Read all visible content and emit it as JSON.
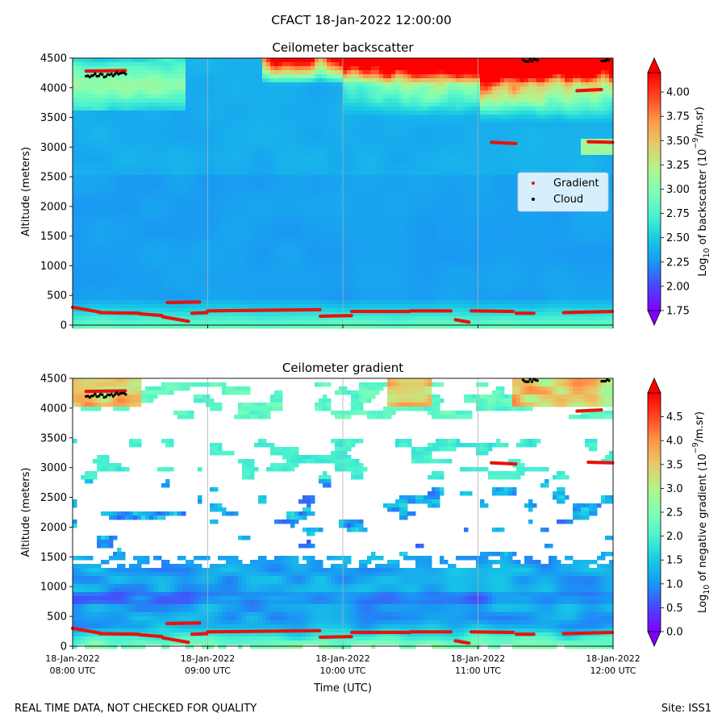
{
  "figure": {
    "title": "CFACT 18-Jan-2022 12:00:00",
    "footer_left": "REAL TIME DATA, NOT CHECKED FOR QUALITY",
    "footer_right": "Site: ISS1"
  },
  "colors": {
    "gradient_marker": "#e8120c",
    "cloud_marker": "#000000",
    "gridline": "#b0b0b0",
    "colormap": [
      "#8000ff",
      "#4a45fb",
      "#1996f3",
      "#17cae5",
      "#4cf2ce",
      "#80ffb4",
      "#b4f28c",
      "#e6ca6a",
      "#ff9646",
      "#ff4522",
      "#ff0000"
    ]
  },
  "chart_data": [
    {
      "type": "heatmap",
      "name": "backscatter",
      "title": "Ceilometer backscatter",
      "xlabel": "",
      "ylabel": "Altitude (meters)",
      "xlim": [
        0,
        240
      ],
      "ylim": [
        0,
        4500
      ],
      "yticks": [
        0,
        500,
        1000,
        1500,
        2000,
        2500,
        3000,
        3500,
        4000,
        4500
      ],
      "xticks": [
        {
          "t": 0,
          "line1": "18-Jan-2022",
          "line2": "08:00 UTC"
        },
        {
          "t": 60,
          "line1": "18-Jan-2022",
          "line2": "09:00 UTC"
        },
        {
          "t": 120,
          "line1": "18-Jan-2022",
          "line2": "10:00 UTC"
        },
        {
          "t": 180,
          "line1": "18-Jan-2022",
          "line2": "11:00 UTC"
        },
        {
          "t": 240,
          "line1": "18-Jan-2022",
          "line2": "12:00 UTC"
        }
      ],
      "show_xtick_labels": false,
      "grid": "x",
      "colorbar": {
        "label_prefix": "Log",
        "label_sub": "10",
        "label_mid": " of backscatter (10",
        "label_sup": "−9",
        "label_suffix": "/m.sr)",
        "min": 1.75,
        "max": 4.2,
        "ticks": [
          "1.75",
          "2.00",
          "2.25",
          "2.50",
          "2.75",
          "3.00",
          "3.25",
          "3.50",
          "3.75",
          "4.00"
        ],
        "extend": "both"
      },
      "legend": {
        "position": "right",
        "entries": [
          "Gradient",
          "Cloud"
        ]
      }
    },
    {
      "type": "heatmap",
      "name": "gradient",
      "title": "Ceilometer gradient",
      "xlabel": "Time (UTC)",
      "ylabel": "Altitude (meters)",
      "xlim": [
        0,
        240
      ],
      "ylim": [
        0,
        4500
      ],
      "yticks": [
        0,
        500,
        1000,
        1500,
        2000,
        2500,
        3000,
        3500,
        4000,
        4500
      ],
      "xticks": [
        {
          "t": 0,
          "line1": "18-Jan-2022",
          "line2": "08:00 UTC"
        },
        {
          "t": 60,
          "line1": "18-Jan-2022",
          "line2": "09:00 UTC"
        },
        {
          "t": 120,
          "line1": "18-Jan-2022",
          "line2": "10:00 UTC"
        },
        {
          "t": 180,
          "line1": "18-Jan-2022",
          "line2": "11:00 UTC"
        },
        {
          "t": 240,
          "line1": "18-Jan-2022",
          "line2": "12:00 UTC"
        }
      ],
      "show_xtick_labels": true,
      "grid": "x",
      "colorbar": {
        "label_prefix": "Log",
        "label_sub": "10",
        "label_mid": " of negative gradient (10",
        "label_sup": "−9",
        "label_suffix": "/m.sr)",
        "min": 0.0,
        "max": 5.0,
        "ticks": [
          "0.0",
          "0.5",
          "1.0",
          "1.5",
          "2.0",
          "2.5",
          "3.0",
          "3.5",
          "4.0",
          "4.5"
        ],
        "extend": "both"
      }
    }
  ],
  "overlay_series": {
    "gradient_points": [
      {
        "t0": 0,
        "t1": 12,
        "h0": 300,
        "h1": 220
      },
      {
        "t0": 12,
        "t1": 30,
        "h0": 210,
        "h1": 200
      },
      {
        "t0": 30,
        "t1": 40,
        "h0": 190,
        "h1": 160
      },
      {
        "t0": 40,
        "t1": 52,
        "h0": 140,
        "h1": 60
      },
      {
        "t0": 42,
        "t1": 57,
        "h0": 380,
        "h1": 390
      },
      {
        "t0": 53,
        "t1": 60,
        "h0": 200,
        "h1": 210
      },
      {
        "t0": 60,
        "t1": 110,
        "h0": 240,
        "h1": 260
      },
      {
        "t0": 110,
        "t1": 124,
        "h0": 150,
        "h1": 160
      },
      {
        "t0": 124,
        "t1": 150,
        "h0": 230,
        "h1": 230
      },
      {
        "t0": 150,
        "t1": 168,
        "h0": 240,
        "h1": 240
      },
      {
        "t0": 170,
        "t1": 176,
        "h0": 90,
        "h1": 50
      },
      {
        "t0": 177,
        "t1": 196,
        "h0": 240,
        "h1": 230
      },
      {
        "t0": 197,
        "t1": 205,
        "h0": 200,
        "h1": 200
      },
      {
        "t0": 218,
        "t1": 240,
        "h0": 210,
        "h1": 230
      },
      {
        "t0": 6,
        "t1": 24,
        "h0": 4280,
        "h1": 4290
      },
      {
        "t0": 186,
        "t1": 197,
        "h0": 3080,
        "h1": 3060
      },
      {
        "t0": 224,
        "t1": 235,
        "h0": 3950,
        "h1": 3970
      },
      {
        "t0": 229,
        "t1": 240,
        "h0": 3090,
        "h1": 3080
      }
    ],
    "cloud_points": [
      {
        "t0": 6,
        "t1": 24,
        "h0": 4200,
        "h1": 4230
      },
      {
        "t0": 200,
        "t1": 207,
        "h0": 4470,
        "h1": 4480
      },
      {
        "t0": 235,
        "t1": 239,
        "h0": 4470,
        "h1": 4490
      }
    ]
  }
}
